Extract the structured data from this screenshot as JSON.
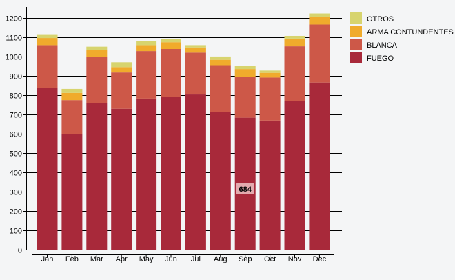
{
  "chart_data": {
    "type": "bar",
    "stacked": true,
    "categories": [
      "Jan",
      "Feb",
      "Mar",
      "Apr",
      "May",
      "Jun",
      "Jul",
      "Aug",
      "Sep",
      "Oct",
      "Nov",
      "Dec"
    ],
    "series": [
      {
        "name": "FUEGO",
        "color": "#a8293a",
        "values": [
          838,
          597,
          761,
          730,
          783,
          792,
          804,
          714,
          684,
          669,
          771,
          866
        ]
      },
      {
        "name": "BLANCA",
        "color": "#cd5848",
        "values": [
          222,
          178,
          239,
          188,
          246,
          248,
          217,
          242,
          213,
          223,
          283,
          301
        ]
      },
      {
        "name": "ARMA CONTUNDENTES",
        "color": "#f0ab2c",
        "values": [
          37,
          37,
          34,
          28,
          31,
          35,
          27,
          28,
          39,
          24,
          40,
          40
        ]
      },
      {
        "name": "OTROS",
        "color": "#d7d46e",
        "values": [
          16,
          21,
          18,
          25,
          20,
          18,
          12,
          17,
          17,
          12,
          14,
          17
        ]
      }
    ],
    "legend_order": [
      "OTROS",
      "ARMA CONTUNDENTES",
      "BLANCA",
      "FUEGO"
    ],
    "legend_placement": "top-right",
    "ylim": [
      0,
      1250
    ],
    "yticks": [
      0,
      100,
      200,
      300,
      400,
      500,
      600,
      700,
      800,
      900,
      1000,
      1100,
      1200
    ],
    "grid": true,
    "xlabel": "",
    "ylabel": "",
    "title": "",
    "tooltip": {
      "category": "Sep",
      "series": "FUEGO",
      "label": "684"
    }
  },
  "colors": {
    "background": "#f4f5f6",
    "gridline": "#000000",
    "tooltip_bg": "#e3aaae"
  }
}
